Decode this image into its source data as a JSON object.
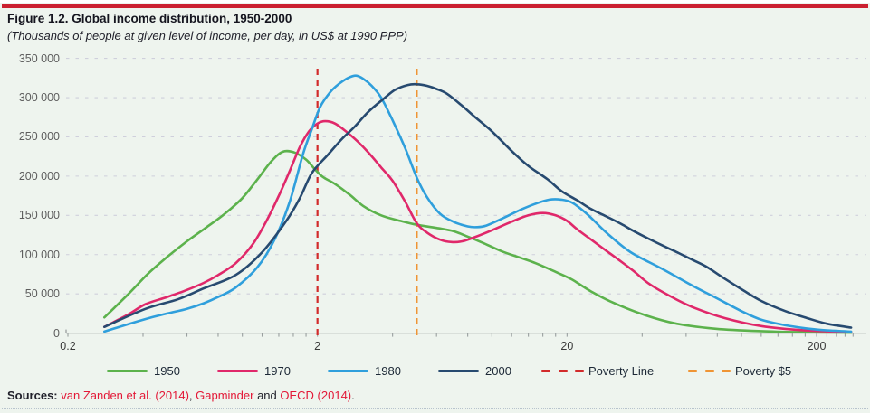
{
  "title": "Figure 1.2. Global income distribution, 1950-2000",
  "subtitle": "(Thousands of people at given level of income, per day, in US$ at 1990 PPP)",
  "colors": {
    "top_bar": "#cb2030",
    "page_bg": "#eef4ee",
    "gridline": "#cfcfdc",
    "axis": "#999f9f",
    "y_label": "#5d5d5d",
    "x_label": "#3a3a3a",
    "source_red": "#e31837"
  },
  "chart_data": {
    "type": "line",
    "x_scale": "log",
    "xlabel": "",
    "ylabel": "",
    "xlim": [
      0.2,
      316
    ],
    "ylim": [
      0,
      350000
    ],
    "grid": "horizontal-dashed",
    "x_tick_labels": [
      "0.2",
      "2",
      "20",
      "200"
    ],
    "x_tick_values": [
      0.2,
      2,
      20,
      200
    ],
    "minor_tick_values": [
      0.4,
      0.6,
      0.8,
      1,
      1.2,
      1.4,
      1.6,
      1.8,
      4,
      6,
      8,
      10,
      12,
      14,
      16,
      18,
      40,
      60,
      80,
      100,
      120,
      140,
      160,
      180,
      220,
      240,
      260,
      280
    ],
    "y_tick_labels": [
      "350 000",
      "300 000",
      "250 000",
      "200 000",
      "150 000",
      "100 000",
      "50 000",
      "0"
    ],
    "y_tick_values": [
      350,
      300,
      250,
      200,
      150,
      100,
      50,
      0
    ],
    "y_unit": "thousands of people",
    "series": [
      {
        "name": "1950",
        "color": "#5cb24c",
        "points": [
          [
            0.28,
            20
          ],
          [
            0.35,
            50
          ],
          [
            0.42,
            76
          ],
          [
            0.5,
            97
          ],
          [
            0.6,
            117
          ],
          [
            0.72,
            135
          ],
          [
            0.85,
            152
          ],
          [
            1.0,
            172
          ],
          [
            1.15,
            196
          ],
          [
            1.3,
            218
          ],
          [
            1.45,
            231
          ],
          [
            1.62,
            230
          ],
          [
            1.8,
            221
          ],
          [
            1.95,
            209
          ],
          [
            2.1,
            199
          ],
          [
            2.35,
            190
          ],
          [
            2.7,
            176
          ],
          [
            3.05,
            162
          ],
          [
            3.6,
            150
          ],
          [
            4.3,
            143
          ],
          [
            5.0,
            138
          ],
          [
            6.0,
            134
          ],
          [
            7.0,
            130
          ],
          [
            8.0,
            123
          ],
          [
            9.2,
            115
          ],
          [
            11,
            104
          ],
          [
            13,
            96
          ],
          [
            15,
            89
          ],
          [
            18,
            78
          ],
          [
            21,
            68
          ],
          [
            25,
            53
          ],
          [
            31,
            38
          ],
          [
            41,
            23
          ],
          [
            55,
            12
          ],
          [
            79,
            5.5
          ],
          [
            120,
            2.5
          ],
          [
            180,
            1.2
          ],
          [
            275,
            0.6
          ]
        ]
      },
      {
        "name": "1970",
        "color": "#e0286a",
        "points": [
          [
            0.28,
            8
          ],
          [
            0.35,
            24
          ],
          [
            0.41,
            37
          ],
          [
            0.5,
            46
          ],
          [
            0.6,
            55
          ],
          [
            0.7,
            64
          ],
          [
            0.8,
            74
          ],
          [
            0.94,
            89
          ],
          [
            1.1,
            113
          ],
          [
            1.25,
            143
          ],
          [
            1.4,
            175
          ],
          [
            1.55,
            207
          ],
          [
            1.7,
            237
          ],
          [
            1.85,
            257
          ],
          [
            2.0,
            267
          ],
          [
            2.15,
            270
          ],
          [
            2.35,
            267
          ],
          [
            2.6,
            257
          ],
          [
            2.9,
            244
          ],
          [
            3.2,
            230
          ],
          [
            3.6,
            211
          ],
          [
            4.0,
            194
          ],
          [
            4.5,
            167
          ],
          [
            5.0,
            140
          ],
          [
            5.5,
            128
          ],
          [
            6.2,
            119
          ],
          [
            6.9,
            116
          ],
          [
            7.6,
            117
          ],
          [
            8.5,
            122
          ],
          [
            10,
            131
          ],
          [
            12,
            142
          ],
          [
            14,
            150
          ],
          [
            16,
            153
          ],
          [
            18,
            150
          ],
          [
            20,
            143
          ],
          [
            22,
            132
          ],
          [
            25,
            119
          ],
          [
            29,
            104
          ],
          [
            33,
            91
          ],
          [
            37,
            79
          ],
          [
            43,
            62
          ],
          [
            54,
            44
          ],
          [
            65,
            32
          ],
          [
            86,
            19
          ],
          [
            120,
            9
          ],
          [
            180,
            3.5
          ],
          [
            275,
            1.5
          ]
        ]
      },
      {
        "name": "1980",
        "color": "#2f9fdc",
        "points": [
          [
            0.28,
            2
          ],
          [
            0.41,
            18
          ],
          [
            0.5,
            25
          ],
          [
            0.6,
            31
          ],
          [
            0.7,
            38
          ],
          [
            0.8,
            46
          ],
          [
            0.94,
            58
          ],
          [
            1.15,
            84
          ],
          [
            1.35,
            120
          ],
          [
            1.55,
            168
          ],
          [
            1.75,
            228
          ],
          [
            1.9,
            260
          ],
          [
            2.05,
            288
          ],
          [
            2.25,
            307
          ],
          [
            2.45,
            318
          ],
          [
            2.65,
            325
          ],
          [
            2.85,
            328
          ],
          [
            3.05,
            324
          ],
          [
            3.3,
            315
          ],
          [
            3.6,
            300
          ],
          [
            4.0,
            271
          ],
          [
            4.5,
            235
          ],
          [
            5.0,
            198
          ],
          [
            5.5,
            173
          ],
          [
            6.2,
            152
          ],
          [
            7.0,
            142
          ],
          [
            8.0,
            136
          ],
          [
            8.7,
            135
          ],
          [
            9.5,
            137
          ],
          [
            11,
            146
          ],
          [
            13,
            157
          ],
          [
            15,
            165
          ],
          [
            17,
            170
          ],
          [
            19,
            170
          ],
          [
            21,
            166
          ],
          [
            24,
            152
          ],
          [
            29,
            127
          ],
          [
            36,
            103
          ],
          [
            48,
            82
          ],
          [
            64,
            60
          ],
          [
            79,
            45
          ],
          [
            100,
            28
          ],
          [
            120,
            17
          ],
          [
            150,
            10
          ],
          [
            182,
            6
          ],
          [
            220,
            3.5
          ],
          [
            275,
            2
          ]
        ]
      },
      {
        "name": "2000",
        "color": "#274a70",
        "points": [
          [
            0.28,
            8
          ],
          [
            0.41,
            31
          ],
          [
            0.55,
            43
          ],
          [
            0.7,
            57
          ],
          [
            0.94,
            74
          ],
          [
            1.2,
            103
          ],
          [
            1.5,
            143
          ],
          [
            1.7,
            172
          ],
          [
            1.9,
            204
          ],
          [
            2.2,
            227
          ],
          [
            2.5,
            247
          ],
          [
            2.8,
            262
          ],
          [
            3.2,
            282
          ],
          [
            3.7,
            299
          ],
          [
            4.1,
            310
          ],
          [
            4.6,
            316
          ],
          [
            5.0,
            317
          ],
          [
            5.5,
            315
          ],
          [
            6.0,
            311
          ],
          [
            6.6,
            305
          ],
          [
            7.5,
            291
          ],
          [
            8.5,
            276
          ],
          [
            10,
            257
          ],
          [
            12,
            232
          ],
          [
            14,
            213
          ],
          [
            16.7,
            196
          ],
          [
            19,
            181
          ],
          [
            22,
            169
          ],
          [
            25,
            158
          ],
          [
            29,
            148
          ],
          [
            33,
            139
          ],
          [
            36.5,
            131
          ],
          [
            42,
            121
          ],
          [
            48,
            112
          ],
          [
            56,
            102
          ],
          [
            64,
            93
          ],
          [
            72,
            85
          ],
          [
            86,
            69
          ],
          [
            100,
            56
          ],
          [
            120,
            41
          ],
          [
            150,
            28
          ],
          [
            182,
            19.5
          ],
          [
            220,
            12
          ],
          [
            275,
            7
          ]
        ]
      }
    ],
    "vlines": [
      {
        "name": "Poverty Line",
        "x": 2,
        "color": "#d22b2b"
      },
      {
        "name": "Poverty $5",
        "x": 5,
        "color": "#ef9434"
      }
    ]
  },
  "legend": {
    "items": [
      {
        "label": "1950",
        "color": "#5cb24c",
        "dashed": false
      },
      {
        "label": "1970",
        "color": "#e0286a",
        "dashed": false
      },
      {
        "label": "1980",
        "color": "#2f9fdc",
        "dashed": false
      },
      {
        "label": "2000",
        "color": "#274a70",
        "dashed": false
      },
      {
        "label": "Poverty Line",
        "color": "#d22b2b",
        "dashed": true
      },
      {
        "label": "Poverty $5",
        "color": "#ef9434",
        "dashed": true
      }
    ]
  },
  "sources": {
    "parts": [
      {
        "text": "Sources: ",
        "color": "dark",
        "bold": true
      },
      {
        "text": "van Zanden et al. (2014)",
        "color": "red",
        "bold": false
      },
      {
        "text": ", ",
        "color": "dark",
        "bold": false
      },
      {
        "text": "Gapminder",
        "color": "red",
        "bold": false
      },
      {
        "text": " and ",
        "color": "dark",
        "bold": false
      },
      {
        "text": "OECD (2014)",
        "color": "red",
        "bold": false
      },
      {
        "text": ".",
        "color": "dark",
        "bold": false
      }
    ]
  }
}
